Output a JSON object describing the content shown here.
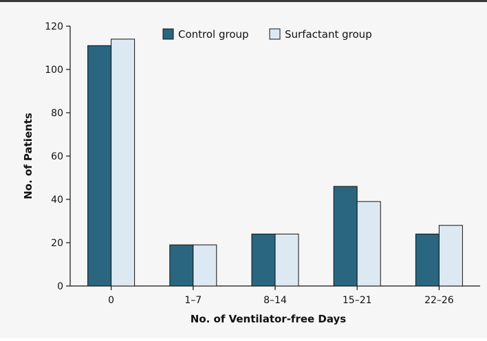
{
  "chart_data": {
    "type": "bar",
    "categories": [
      "0",
      "1–7",
      "8–14",
      "15–21",
      "22–26"
    ],
    "series": [
      {
        "name": "Control group",
        "values": [
          111,
          19,
          24,
          46,
          24
        ]
      },
      {
        "name": "Surfactant group",
        "values": [
          114,
          19,
          24,
          39,
          28
        ]
      }
    ],
    "title": "",
    "xlabel": "No. of Ventilator-free Days",
    "ylabel": "No. of Patients",
    "ylim": [
      0,
      120
    ],
    "yticks": [
      0,
      20,
      40,
      60,
      80,
      100,
      120
    ],
    "grid": false,
    "legend_position": "top-center"
  },
  "colors": {
    "control": "#2a6680",
    "surfactant": "#dde9f2",
    "bar_stroke": "#111111",
    "axis": "#111111"
  }
}
